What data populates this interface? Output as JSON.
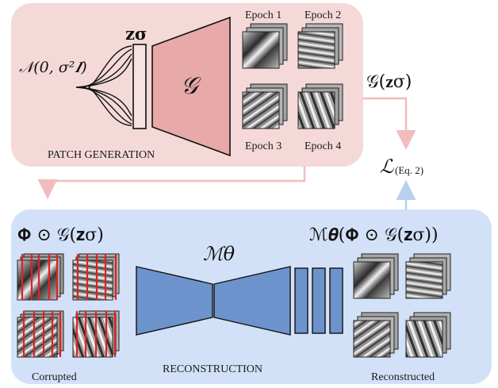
{
  "generation": {
    "noise_label": "𝒩(0, σ²𝑰)",
    "latent_label": "𝐳σ",
    "generator_label": "𝒢",
    "section_label": "PATCH GENERATION",
    "epochs": [
      "Epoch 1",
      "Epoch 2",
      "Epoch 3",
      "Epoch 4"
    ],
    "output_label": "𝒢(𝐳σ)"
  },
  "loss": {
    "symbol": "ℒ",
    "note": "(Eq. 2)"
  },
  "reconstruction": {
    "input_label": "𝚽 ⊙ 𝒢(𝐳σ)",
    "model_label": "ℳθ",
    "output_label": "ℳ𝜽(𝚽 ⊙ 𝒢(𝐳σ))",
    "section_label": "RECONSTRUCTION",
    "corrupted_label": "Corrupted",
    "reconstructed_label": "Reconstructed"
  },
  "colors": {
    "generation_bg": "#f5d9d9",
    "generator_fill": "#e8a9a9",
    "reconstruction_bg": "#d2e1f7",
    "model_fill": "#6d93cc",
    "arrow_pink": "#f2bcbc",
    "arrow_blue": "#b8cff0",
    "mask_red": "#e02020"
  }
}
